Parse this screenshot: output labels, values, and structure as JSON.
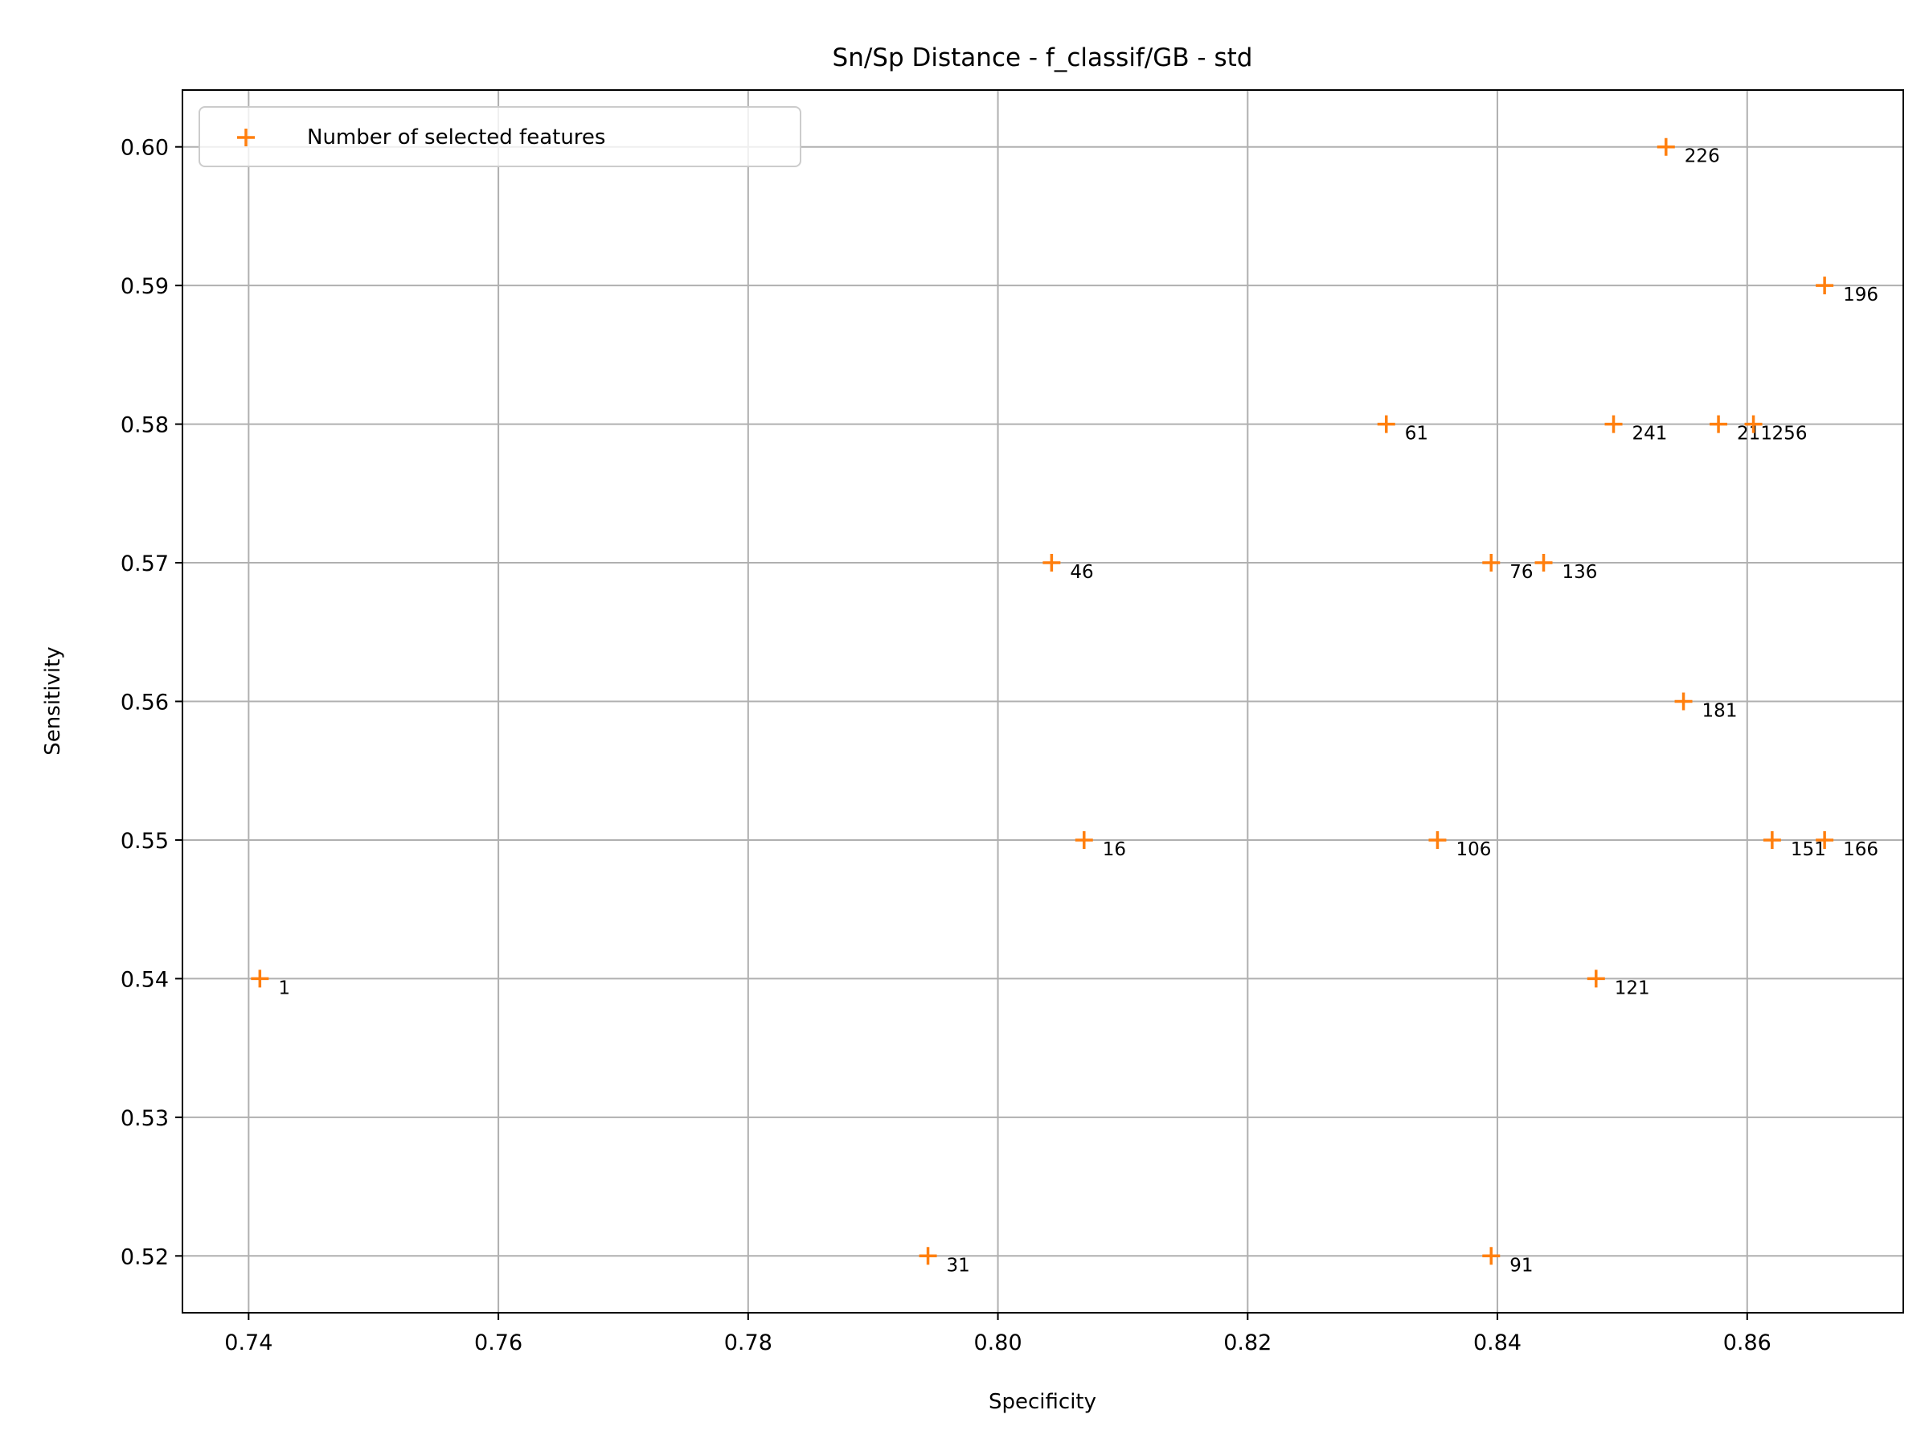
{
  "chart_data": {
    "type": "scatter",
    "title": "Sn/Sp Distance - f_classif/GB - std",
    "xlabel": "Specificity",
    "ylabel": "Sensitivity",
    "xlim": [
      0.7347,
      0.8725
    ],
    "ylim": [
      0.5159,
      0.6041
    ],
    "xticks": [
      0.74,
      0.76,
      0.78,
      0.8,
      0.82,
      0.84,
      0.86
    ],
    "xtick_labels": [
      "0.74",
      "0.76",
      "0.78",
      "0.80",
      "0.82",
      "0.84",
      "0.86"
    ],
    "yticks": [
      0.52,
      0.53,
      0.54,
      0.55,
      0.56,
      0.57,
      0.58,
      0.59,
      0.6
    ],
    "ytick_labels": [
      "0.52",
      "0.53",
      "0.54",
      "0.55",
      "0.56",
      "0.57",
      "0.58",
      "0.59",
      "0.60"
    ],
    "grid": true,
    "legend_position": "top-left",
    "marker": "plus",
    "color": "#ff7f0e",
    "series": [
      {
        "name": "Number of selected features",
        "points": [
          {
            "x": 0.7409,
            "y": 0.54,
            "label": "1"
          },
          {
            "x": 0.8069,
            "y": 0.55,
            "label": "16"
          },
          {
            "x": 0.7944,
            "y": 0.52,
            "label": "31"
          },
          {
            "x": 0.8043,
            "y": 0.57,
            "label": "46"
          },
          {
            "x": 0.8311,
            "y": 0.58,
            "label": "61"
          },
          {
            "x": 0.8395,
            "y": 0.57,
            "label": "76"
          },
          {
            "x": 0.8395,
            "y": 0.52,
            "label": "91"
          },
          {
            "x": 0.8352,
            "y": 0.55,
            "label": "106"
          },
          {
            "x": 0.8479,
            "y": 0.54,
            "label": "121"
          },
          {
            "x": 0.8437,
            "y": 0.57,
            "label": "136"
          },
          {
            "x": 0.862,
            "y": 0.55,
            "label": "151"
          },
          {
            "x": 0.8662,
            "y": 0.55,
            "label": "166"
          },
          {
            "x": 0.8549,
            "y": 0.56,
            "label": "181"
          },
          {
            "x": 0.8662,
            "y": 0.59,
            "label": "196"
          },
          {
            "x": 0.8577,
            "y": 0.58,
            "label": "211"
          },
          {
            "x": 0.8535,
            "y": 0.6,
            "label": "226"
          },
          {
            "x": 0.8493,
            "y": 0.58,
            "label": "241"
          },
          {
            "x": 0.8605,
            "y": 0.58,
            "label": "256"
          }
        ]
      }
    ]
  }
}
